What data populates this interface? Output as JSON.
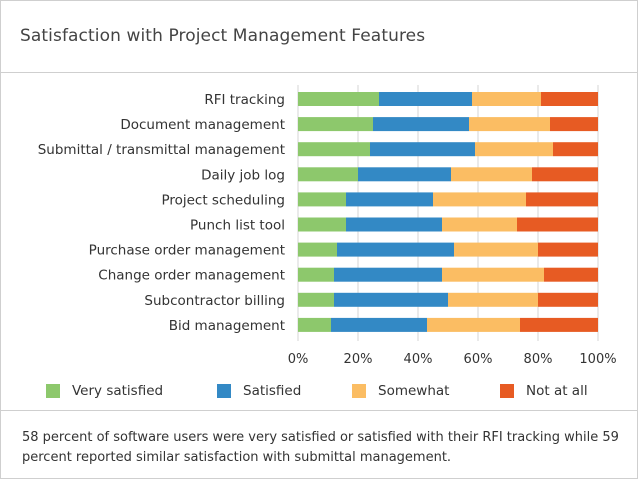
{
  "page": {
    "title": "Satisfaction with Project Management Features",
    "caption": "58 percent of software users were very satisfied or satisfied with their RFI tracking while 59 percent reported similar satisfaction with submittal management."
  },
  "chart_data": {
    "type": "bar",
    "orientation": "horizontal",
    "stacked": true,
    "categories": [
      "RFI tracking",
      "Document management",
      "Submittal / transmittal management",
      "Daily job log",
      "Project scheduling",
      "Punch list tool",
      "Purchase order management",
      "Change order management",
      "Subcontractor billing",
      "Bid management"
    ],
    "series": [
      {
        "name": "Very satisfied",
        "color": "#8dc86c",
        "values": [
          27,
          25,
          24,
          20,
          16,
          16,
          13,
          12,
          12,
          11
        ]
      },
      {
        "name": "Satisfied",
        "color": "#3389c5",
        "values": [
          31,
          32,
          35,
          31,
          29,
          32,
          39,
          36,
          38,
          32
        ]
      },
      {
        "name": "Somewhat",
        "color": "#fbbd63",
        "values": [
          23,
          27,
          26,
          27,
          31,
          25,
          28,
          34,
          30,
          31
        ]
      },
      {
        "name": "Not at all",
        "color": "#e75b23",
        "values": [
          19,
          16,
          15,
          22,
          24,
          27,
          20,
          18,
          20,
          26
        ]
      }
    ],
    "xlim": [
      0,
      100
    ],
    "x_ticks": [
      "0%",
      "20%",
      "40%",
      "60%",
      "80%",
      "100%"
    ],
    "grid": true,
    "legend_position": "bottom"
  }
}
